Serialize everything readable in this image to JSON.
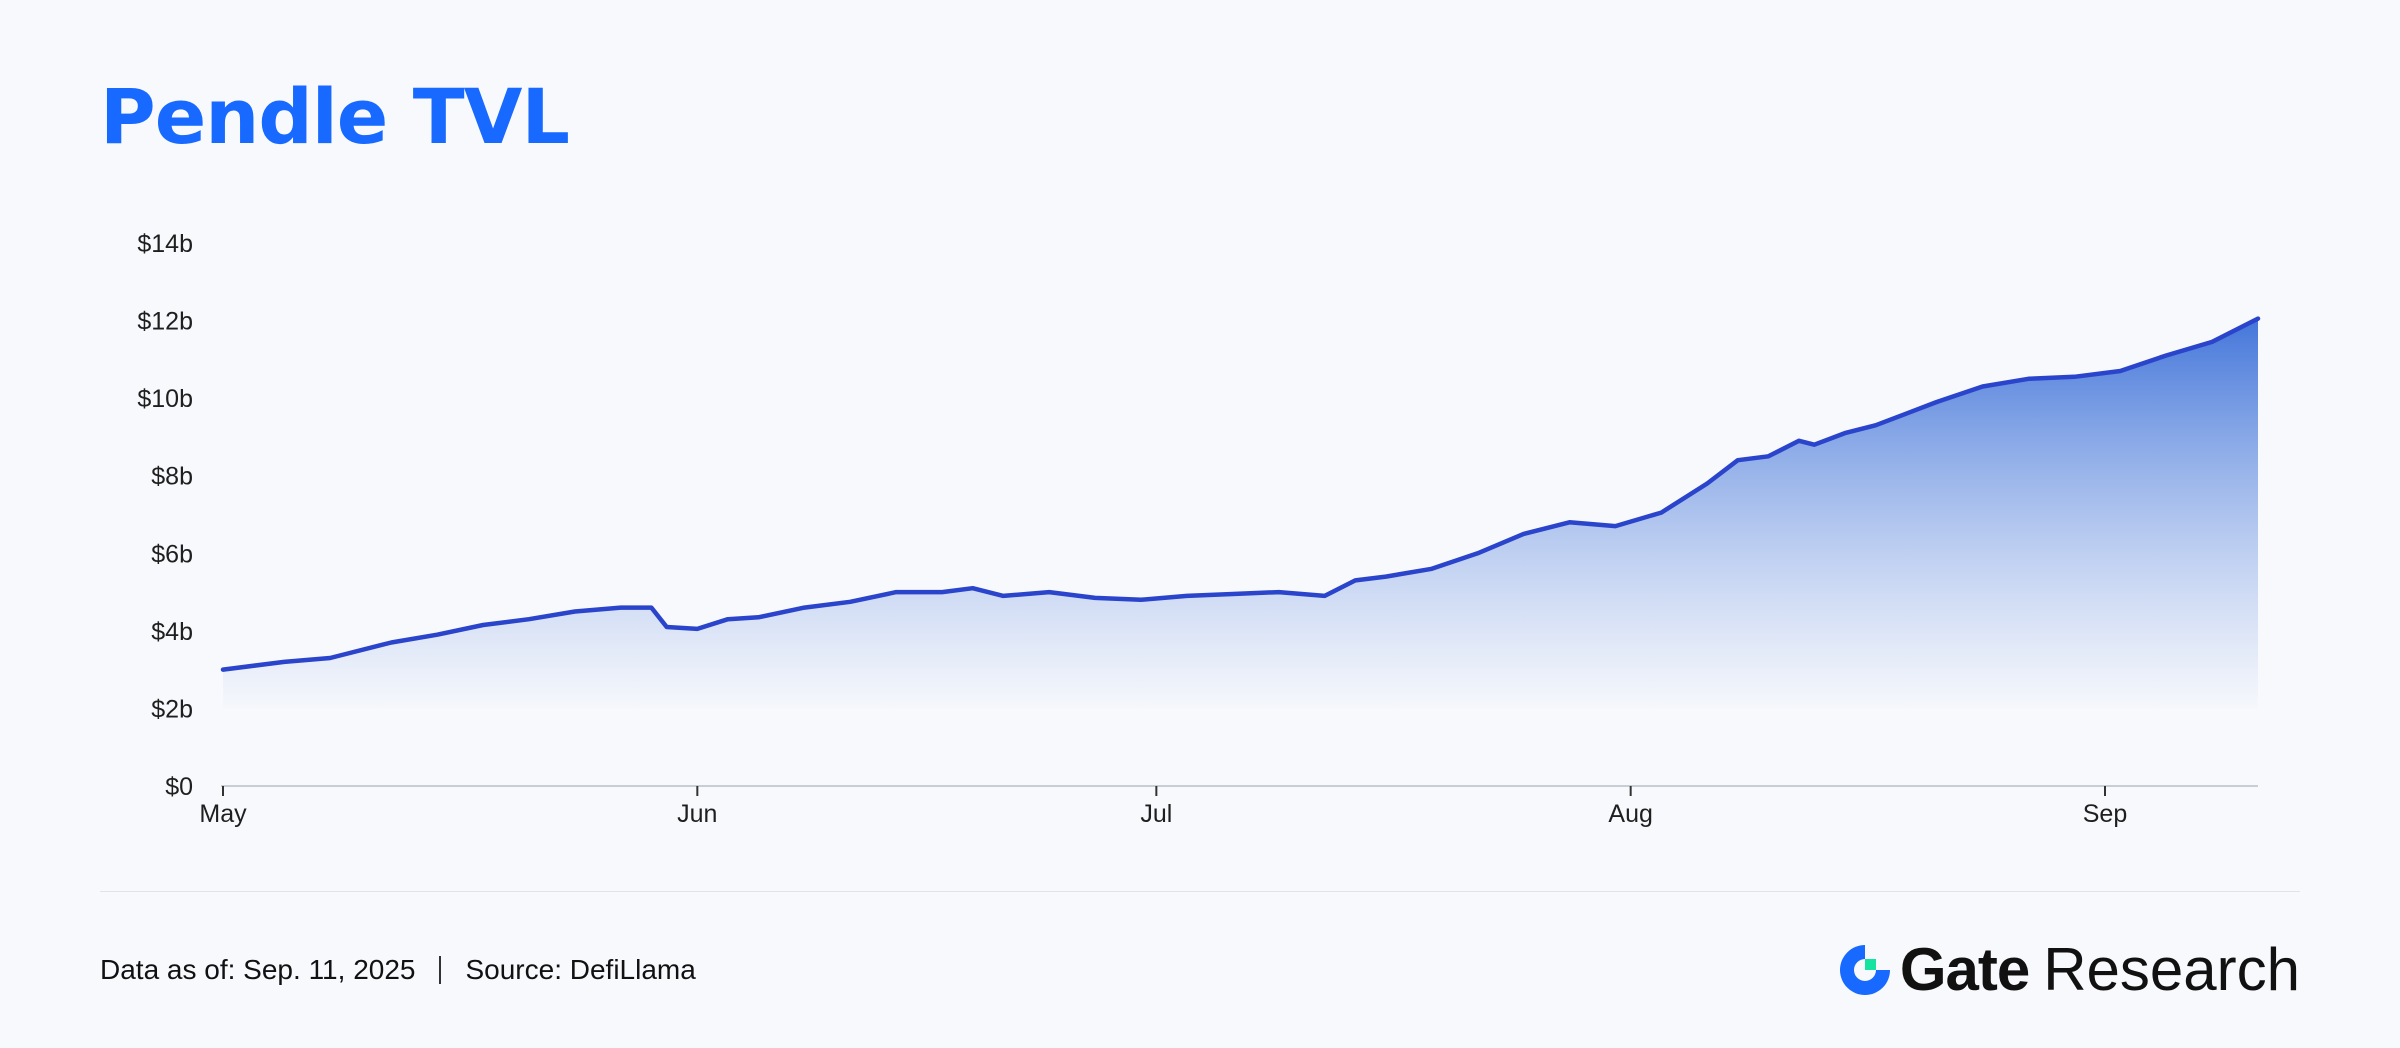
{
  "title": "Pendle TVL",
  "footer": {
    "data_as_of": "Data as of: Sep. 11, 2025",
    "source": "Source: DefiLlama"
  },
  "brand": {
    "name": "Gate",
    "suffix": "Research",
    "colors": {
      "primary": "#1769ff",
      "accent": "#17e3a0"
    }
  },
  "chart_data": {
    "type": "area",
    "title": "Pendle TVL",
    "xlabel": "",
    "ylabel": "",
    "x_ticks": [
      "May",
      "Jun",
      "Jul",
      "Aug",
      "Sep"
    ],
    "y_ticks": [
      "$0",
      "$2b",
      "$4b",
      "$6b",
      "$8b",
      "$10b",
      "$12b",
      "$14b"
    ],
    "ylim": [
      0,
      14
    ],
    "y_unit": "billion USD",
    "grid": false,
    "colors": {
      "line": "#2a44cc",
      "fill_top": "#3a6fd8",
      "fill_bottom": "#f4f6fb"
    },
    "series": [
      {
        "x": [
          "2025-05-01",
          "2025-05-05",
          "2025-05-08",
          "2025-05-12",
          "2025-05-15",
          "2025-05-18",
          "2025-05-21",
          "2025-05-24",
          "2025-05-27",
          "2025-05-29",
          "2025-05-30",
          "2025-06-01",
          "2025-06-03",
          "2025-06-05",
          "2025-06-08",
          "2025-06-11",
          "2025-06-14",
          "2025-06-17",
          "2025-06-19",
          "2025-06-21",
          "2025-06-24",
          "2025-06-27",
          "2025-06-30",
          "2025-07-03",
          "2025-07-06",
          "2025-07-09",
          "2025-07-12",
          "2025-07-14",
          "2025-07-16",
          "2025-07-19",
          "2025-07-22",
          "2025-07-25",
          "2025-07-28",
          "2025-07-31",
          "2025-08-03",
          "2025-08-06",
          "2025-08-08",
          "2025-08-10",
          "2025-08-12",
          "2025-08-13",
          "2025-08-15",
          "2025-08-17",
          "2025-08-19",
          "2025-08-21",
          "2025-08-24",
          "2025-08-27",
          "2025-08-30",
          "2025-09-02",
          "2025-09-05",
          "2025-09-08",
          "2025-09-11"
        ],
        "values": [
          3.0,
          3.2,
          3.3,
          3.7,
          3.9,
          4.15,
          4.3,
          4.5,
          4.6,
          4.6,
          4.1,
          4.05,
          4.3,
          4.35,
          4.6,
          4.75,
          5.0,
          5.0,
          5.1,
          4.9,
          5.0,
          4.85,
          4.8,
          4.9,
          4.95,
          5.0,
          4.9,
          5.3,
          5.4,
          5.6,
          6.0,
          6.5,
          6.8,
          6.7,
          7.05,
          7.8,
          8.4,
          8.5,
          8.9,
          8.8,
          9.1,
          9.3,
          9.6,
          9.9,
          10.3,
          10.5,
          10.55,
          10.7,
          11.1,
          11.45,
          12.05
        ]
      }
    ]
  }
}
